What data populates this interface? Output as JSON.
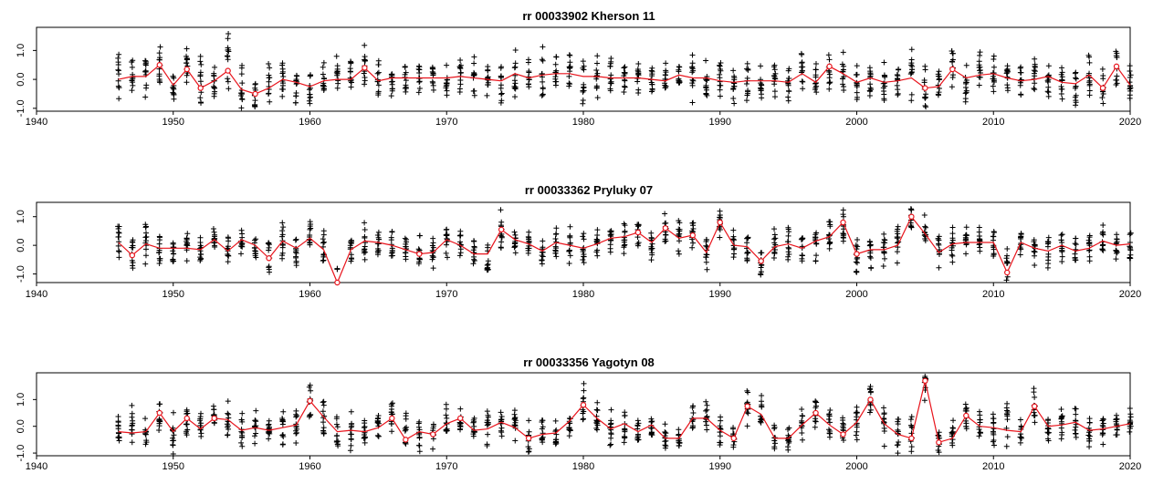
{
  "colors": {
    "series": "#e8141c",
    "points": "#000000"
  },
  "chart_data": [
    {
      "type": "line",
      "title": "rr 00033902 Kherson 11",
      "xlim": [
        1940,
        2020
      ],
      "ylim": [
        -1.1,
        1.8
      ],
      "x_ticks": [
        1940,
        1950,
        1960,
        1970,
        1980,
        1990,
        2000,
        2010,
        2020
      ],
      "y_ticks": [
        -1.0,
        0.0,
        1.0
      ],
      "y_tick_labels": [
        "-1.0",
        "0.0",
        "1.0"
      ],
      "annual_mean": {
        "x": [
          1946,
          1947,
          1948,
          1949,
          1950,
          1951,
          1952,
          1953,
          1954,
          1955,
          1956,
          1957,
          1958,
          1959,
          1960,
          1961,
          1962,
          1963,
          1964,
          1965,
          1966,
          1967,
          1968,
          1969,
          1970,
          1971,
          1972,
          1973,
          1974,
          1975,
          1976,
          1977,
          1978,
          1979,
          1980,
          1981,
          1982,
          1983,
          1984,
          1985,
          1986,
          1987,
          1988,
          1989,
          1990,
          1991,
          1992,
          1993,
          1994,
          1995,
          1996,
          1997,
          1998,
          1999,
          2000,
          2001,
          2002,
          2003,
          2004,
          2005,
          2006,
          2007,
          2008,
          2009,
          2010,
          2011,
          2012,
          2013,
          2014,
          2015,
          2016,
          2017,
          2018,
          2019,
          2020
        ],
        "y": [
          0.0,
          0.1,
          0.1,
          0.5,
          -0.2,
          0.35,
          -0.3,
          -0.05,
          0.3,
          -0.35,
          -0.5,
          -0.3,
          0.0,
          -0.1,
          -0.25,
          -0.05,
          0.0,
          0.0,
          0.4,
          -0.05,
          0.05,
          0.05,
          0.05,
          0.05,
          0.05,
          0.1,
          0.05,
          0.0,
          -0.05,
          0.2,
          0.05,
          0.15,
          0.2,
          0.2,
          0.1,
          0.1,
          0.05,
          0.05,
          0.05,
          0.0,
          -0.05,
          0.15,
          0.05,
          0.05,
          -0.05,
          -0.1,
          -0.05,
          -0.05,
          -0.05,
          -0.1,
          0.2,
          -0.1,
          0.45,
          0.2,
          -0.1,
          0.05,
          -0.1,
          -0.05,
          0.05,
          -0.3,
          -0.25,
          0.35,
          0.05,
          0.15,
          0.2,
          0.05,
          -0.05,
          0.0,
          0.1,
          -0.1,
          -0.15,
          0.15,
          -0.3,
          0.45,
          -0.2
        ]
      },
      "monthly_spread": [
        1.1,
        0.9,
        0.9,
        1.1,
        0.9,
        1.1,
        1.3,
        0.8,
        1.5,
        1.0,
        1.0,
        1.1,
        0.9,
        0.8,
        0.8,
        0.8,
        0.9,
        0.8,
        0.9,
        0.9,
        0.7,
        0.7,
        0.7,
        0.7,
        0.7,
        0.7,
        0.8,
        0.8,
        0.8,
        0.9,
        0.8,
        1.1,
        0.8,
        0.9,
        1.1,
        0.9,
        0.7,
        0.8,
        0.7,
        0.7,
        0.7,
        0.8,
        0.9,
        0.8,
        0.8,
        0.8,
        0.8,
        0.8,
        0.9,
        0.9,
        0.9,
        0.8,
        0.9,
        0.8,
        0.8,
        0.8,
        0.8,
        0.8,
        1.2,
        0.9,
        0.9,
        1.1,
        0.9,
        0.9,
        0.8,
        0.7,
        0.7,
        0.8,
        0.8,
        0.8,
        0.9,
        0.8,
        0.9,
        0.9,
        0.9
      ]
    },
    {
      "type": "line",
      "title": "rr 00033362 Pryluky 07",
      "xlim": [
        1940,
        2020
      ],
      "ylim": [
        -1.3,
        1.5
      ],
      "x_ticks": [
        1940,
        1950,
        1960,
        1970,
        1980,
        1990,
        2000,
        2010,
        2020
      ],
      "y_ticks": [
        -1.0,
        0.0,
        1.0
      ],
      "y_tick_labels": [
        "-1.0",
        "0.0",
        "1.0"
      ],
      "annual_mean": {
        "x": [
          1946,
          1947,
          1948,
          1949,
          1950,
          1951,
          1952,
          1953,
          1954,
          1955,
          1956,
          1957,
          1958,
          1959,
          1960,
          1961,
          1962,
          1963,
          1964,
          1965,
          1966,
          1967,
          1968,
          1969,
          1970,
          1971,
          1972,
          1973,
          1974,
          1975,
          1976,
          1977,
          1978,
          1979,
          1980,
          1981,
          1982,
          1983,
          1984,
          1985,
          1986,
          1987,
          1988,
          1989,
          1990,
          1991,
          1992,
          1993,
          1994,
          1995,
          1996,
          1997,
          1998,
          1999,
          2000,
          2001,
          2002,
          2003,
          2004,
          2005,
          2006,
          2007,
          2008,
          2009,
          2010,
          2011,
          2012,
          2013,
          2014,
          2015,
          2016,
          2017,
          2018,
          2019,
          2020
        ],
        "y": [
          0.1,
          -0.35,
          0.05,
          -0.1,
          -0.1,
          -0.1,
          -0.15,
          0.2,
          -0.2,
          0.2,
          0.0,
          -0.45,
          0.15,
          -0.1,
          0.25,
          -0.15,
          -1.3,
          -0.15,
          0.15,
          0.1,
          0.0,
          -0.15,
          -0.3,
          -0.25,
          0.2,
          0.0,
          -0.3,
          -0.3,
          0.55,
          0.2,
          0.05,
          -0.2,
          0.1,
          0.0,
          -0.1,
          0.05,
          0.25,
          0.3,
          0.45,
          0.1,
          0.6,
          0.25,
          0.35,
          -0.25,
          0.8,
          0.0,
          -0.05,
          -0.55,
          -0.05,
          0.05,
          -0.1,
          0.15,
          0.3,
          0.8,
          -0.3,
          -0.15,
          -0.15,
          0.0,
          1.0,
          0.4,
          -0.25,
          0.05,
          0.1,
          0.1,
          0.1,
          -0.95,
          0.1,
          -0.1,
          -0.2,
          0.0,
          -0.2,
          -0.1,
          0.15,
          0.0,
          0.05
        ]
      },
      "monthly_spread": [
        0.7,
        0.8,
        0.9,
        0.9,
        0.6,
        0.7,
        0.6,
        0.6,
        0.6,
        0.6,
        0.7,
        0.8,
        0.9,
        0.7,
        0.8,
        0.8,
        0.6,
        0.8,
        0.8,
        0.8,
        0.7,
        0.7,
        0.7,
        0.7,
        0.7,
        0.7,
        0.7,
        0.8,
        0.8,
        0.7,
        0.7,
        0.7,
        0.7,
        0.7,
        0.7,
        0.7,
        0.7,
        0.7,
        0.8,
        0.7,
        0.8,
        0.8,
        0.8,
        0.7,
        0.8,
        0.7,
        0.7,
        0.7,
        0.7,
        0.8,
        0.7,
        0.8,
        0.9,
        0.9,
        0.8,
        0.8,
        0.8,
        0.8,
        0.9,
        0.8,
        0.7,
        0.7,
        0.7,
        0.7,
        0.8,
        0.9,
        0.7,
        0.7,
        0.7,
        0.6,
        0.6,
        0.6,
        0.7,
        0.7,
        0.7
      ]
    },
    {
      "type": "line",
      "title": "rr 00033356 Yagotyn 08",
      "xlim": [
        1940,
        2020
      ],
      "ylim": [
        -1.1,
        2.0
      ],
      "x_ticks": [
        1940,
        1950,
        1960,
        1970,
        1980,
        1990,
        2000,
        2010,
        2020
      ],
      "y_ticks": [
        -1.0,
        0.0,
        1.0
      ],
      "y_tick_labels": [
        "-1.0",
        "0.0",
        "1.0"
      ],
      "annual_mean": {
        "x": [
          1946,
          1947,
          1948,
          1949,
          1950,
          1951,
          1952,
          1953,
          1954,
          1955,
          1956,
          1957,
          1958,
          1959,
          1960,
          1961,
          1962,
          1963,
          1964,
          1965,
          1966,
          1967,
          1968,
          1969,
          1970,
          1971,
          1972,
          1973,
          1974,
          1975,
          1976,
          1977,
          1978,
          1979,
          1980,
          1981,
          1982,
          1983,
          1984,
          1985,
          1986,
          1987,
          1988,
          1989,
          1990,
          1991,
          1992,
          1993,
          1994,
          1995,
          1996,
          1997,
          1998,
          1999,
          2000,
          2001,
          2002,
          2003,
          2004,
          2005,
          2006,
          2007,
          2008,
          2009,
          2010,
          2011,
          2012,
          2013,
          2014,
          2015,
          2016,
          2017,
          2018,
          2019,
          2020
        ],
        "y": [
          -0.2,
          -0.25,
          -0.2,
          0.5,
          -0.2,
          0.3,
          -0.1,
          0.3,
          0.25,
          -0.15,
          -0.05,
          -0.15,
          -0.05,
          0.05,
          0.95,
          0.35,
          -0.2,
          -0.15,
          -0.2,
          -0.05,
          0.3,
          -0.5,
          -0.2,
          -0.3,
          0.1,
          0.3,
          -0.15,
          -0.1,
          0.15,
          -0.05,
          -0.45,
          -0.3,
          -0.25,
          0.2,
          0.8,
          0.3,
          -0.1,
          0.1,
          -0.2,
          0.05,
          -0.45,
          -0.45,
          0.3,
          0.3,
          -0.15,
          -0.45,
          0.75,
          0.45,
          -0.45,
          -0.45,
          0.05,
          0.5,
          0.05,
          -0.3,
          0.15,
          1.0,
          0.1,
          -0.3,
          -0.45,
          1.7,
          -0.6,
          -0.45,
          0.4,
          0.0,
          -0.05,
          -0.15,
          -0.2,
          0.75,
          0.0,
          0.05,
          0.15,
          -0.15,
          -0.1,
          0.0,
          0.1
        ]
      },
      "monthly_spread": [
        0.8,
        1.2,
        1.0,
        0.9,
        0.9,
        0.8,
        0.8,
        0.8,
        0.9,
        0.9,
        0.8,
        0.7,
        0.8,
        0.8,
        0.9,
        0.9,
        0.8,
        0.8,
        0.7,
        0.8,
        0.8,
        1.2,
        0.8,
        0.8,
        0.8,
        0.8,
        0.7,
        0.8,
        0.8,
        0.8,
        1.2,
        0.8,
        0.8,
        0.8,
        1.0,
        0.8,
        0.8,
        0.8,
        0.8,
        0.8,
        0.8,
        0.7,
        0.8,
        0.8,
        0.8,
        0.7,
        0.8,
        0.8,
        0.8,
        0.9,
        0.9,
        0.8,
        0.8,
        0.8,
        0.8,
        0.9,
        0.9,
        0.8,
        1.0,
        1.2,
        0.8,
        0.8,
        0.8,
        0.8,
        0.8,
        1.2,
        0.8,
        0.8,
        0.7,
        0.7,
        0.7,
        0.7,
        0.7,
        0.7,
        0.7
      ]
    }
  ]
}
